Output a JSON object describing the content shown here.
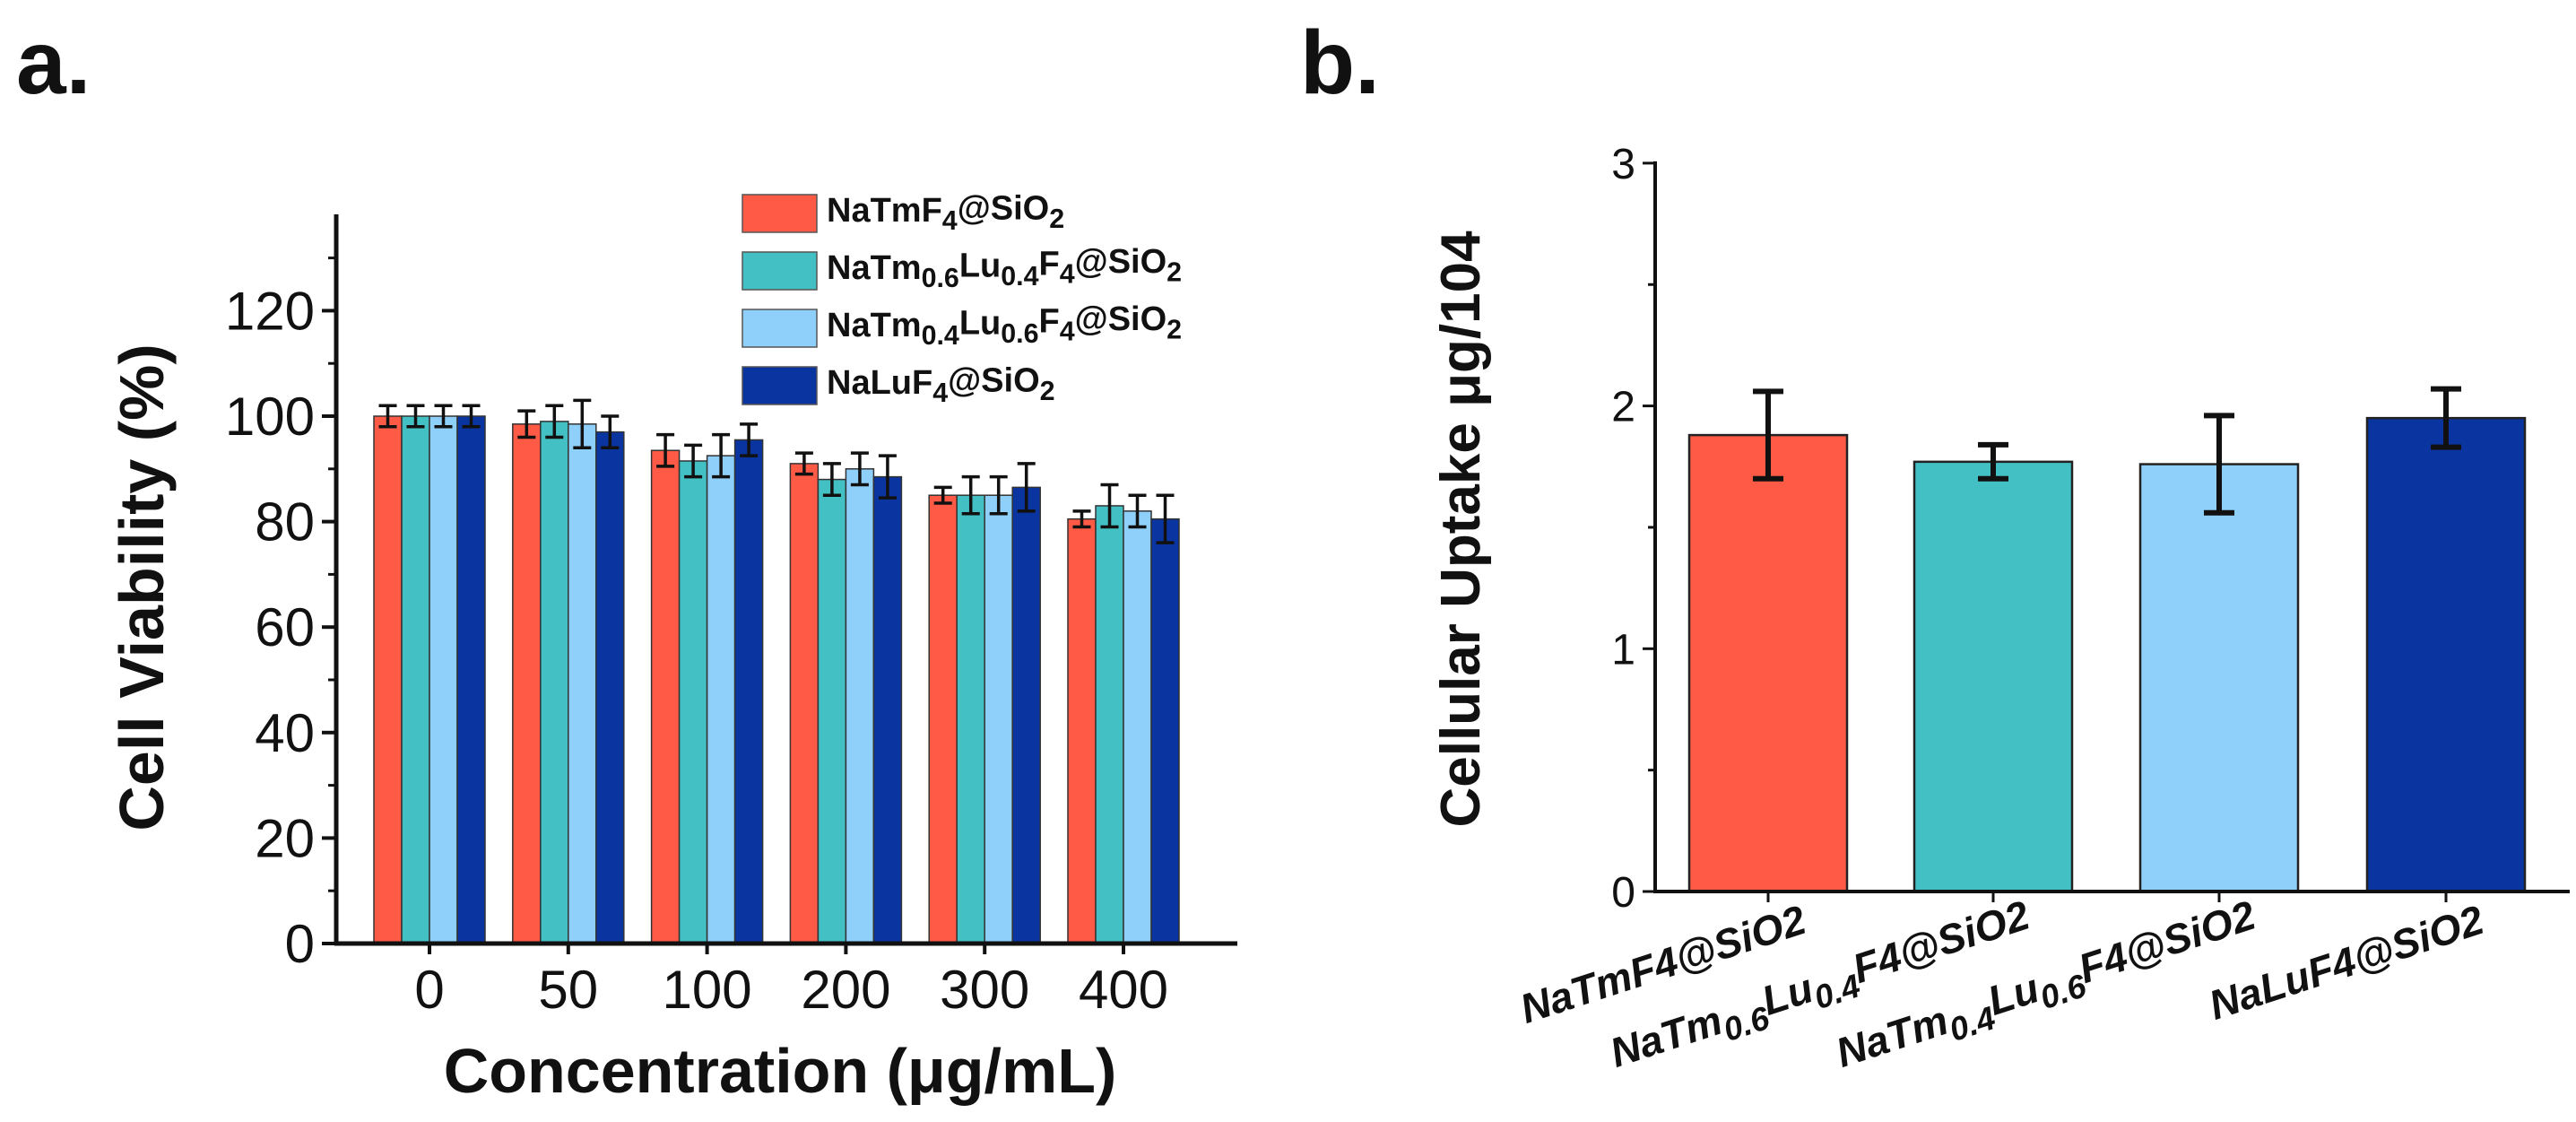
{
  "chart_data": [
    {
      "type": "bar",
      "panel_label": "a.",
      "title": "",
      "xlabel": "Concentration (μg/mL)",
      "ylabel": "Cell Viability (%)",
      "ylim": [
        0,
        138
      ],
      "yticks": [
        0,
        20,
        40,
        60,
        80,
        100,
        120
      ],
      "categories": [
        "0",
        "50",
        "100",
        "200",
        "300",
        "400"
      ],
      "legend_position": "top-right",
      "series": [
        {
          "name": "NaTmF4@SiO2",
          "name_parts": [
            [
              "NaTmF",
              0
            ],
            [
              "4",
              1
            ],
            [
              "@SiO",
              0
            ],
            [
              "2",
              1
            ]
          ],
          "color": "#FF5A46",
          "values": [
            100,
            98.5,
            93.5,
            91,
            85,
            80.5
          ],
          "errors": [
            2,
            2.5,
            3,
            2,
            1.5,
            1.5
          ]
        },
        {
          "name": "NaTm0.6Lu0.4F4@SiO2",
          "name_parts": [
            [
              "NaTm",
              0
            ],
            [
              "0.6",
              1
            ],
            [
              "Lu",
              0
            ],
            [
              "0.4",
              1
            ],
            [
              "F",
              0
            ],
            [
              "4",
              1
            ],
            [
              "@SiO",
              0
            ],
            [
              "2",
              1
            ]
          ],
          "color": "#42C0C4",
          "values": [
            100,
            99,
            91.5,
            88,
            85,
            83
          ],
          "errors": [
            2,
            3,
            3,
            3,
            3.5,
            4
          ]
        },
        {
          "name": "NaTm0.4Lu0.6F4@SiO2",
          "name_parts": [
            [
              "NaTm",
              0
            ],
            [
              "0.4",
              1
            ],
            [
              "Lu",
              0
            ],
            [
              "0.6",
              1
            ],
            [
              "F",
              0
            ],
            [
              "4",
              1
            ],
            [
              "@SiO",
              0
            ],
            [
              "2",
              1
            ]
          ],
          "color": "#8FD0FA",
          "values": [
            100,
            98.5,
            92.5,
            90,
            85,
            82
          ],
          "errors": [
            2,
            4.5,
            4,
            3,
            3.5,
            3
          ]
        },
        {
          "name": "NaLuF4@SiO2",
          "name_parts": [
            [
              "NaLuF",
              0
            ],
            [
              "4",
              1
            ],
            [
              "@SiO",
              0
            ],
            [
              "2",
              1
            ]
          ],
          "color": "#0A35A0",
          "values": [
            100,
            97,
            95.5,
            88.5,
            86.5,
            80.5
          ],
          "errors": [
            2,
            3,
            3,
            4,
            4.5,
            4.5
          ]
        }
      ]
    },
    {
      "type": "bar",
      "panel_label": "b.",
      "title": "",
      "xlabel": "",
      "ylabel": "Cellular  Uptake μg/104",
      "ylim": [
        0,
        3
      ],
      "yticks": [
        0,
        1,
        2,
        3
      ],
      "categories": [
        "NaTmF4@SiO2",
        "NaTm0.6Lu0.4F4@SiO2",
        "NaTm0.4Lu0.6F4@SiO2",
        "NaLuF4@SiO2"
      ],
      "category_parts": [
        [
          [
            "NaTmF4@SiO2",
            0
          ]
        ],
        [
          [
            "NaTm",
            0
          ],
          [
            "0.6",
            1
          ],
          [
            "Lu",
            0
          ],
          [
            "0.4",
            1
          ],
          [
            "F4@SiO2",
            0
          ]
        ],
        [
          [
            "NaTm",
            0
          ],
          [
            "0.4",
            1
          ],
          [
            "Lu",
            0
          ],
          [
            "0.6",
            1
          ],
          [
            "F4@SiO2",
            0
          ]
        ],
        [
          [
            "NaLuF4@SiO2",
            0
          ]
        ]
      ],
      "values": [
        1.88,
        1.77,
        1.76,
        1.95
      ],
      "errors": [
        0.18,
        0.07,
        0.2,
        0.12
      ],
      "colors": [
        "#FF5A46",
        "#42C0C4",
        "#8FD0FA",
        "#0A35A0"
      ]
    }
  ]
}
